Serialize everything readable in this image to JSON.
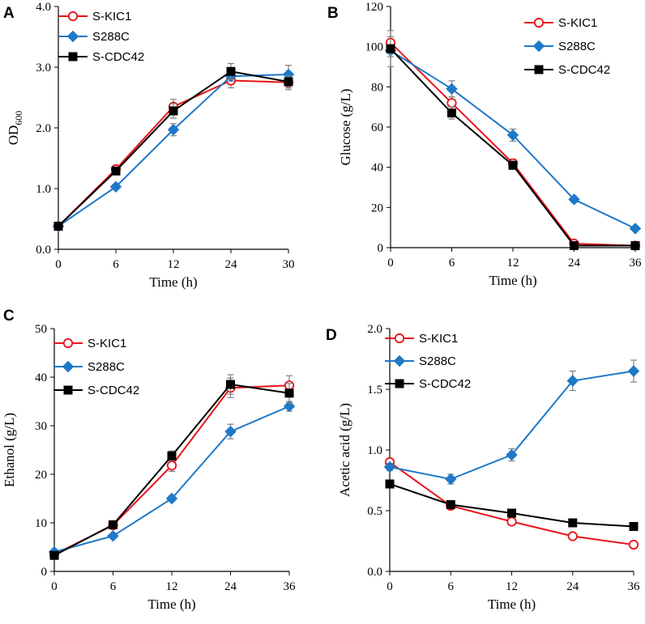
{
  "colors": {
    "S-KIC1": "#e8141b",
    "S288C": "#1f78c8",
    "S-CDC42": "#000000",
    "errorbar": "#808080"
  },
  "chart_data": [
    {
      "panel": "A",
      "type": "line",
      "xlabel": "Time (h)",
      "ylabel": "OD",
      "ylabel_sub": "600",
      "x": [
        0,
        6,
        12,
        24,
        30
      ],
      "xticks": [
        "0",
        "6",
        "12",
        "24",
        "30"
      ],
      "ylim": [
        0,
        4
      ],
      "yticks": [
        0,
        1,
        2,
        3,
        4
      ],
      "ytick_labels": [
        "0.0",
        "1.0",
        "2.0",
        "3.0",
        "4.0"
      ],
      "legend": "top-left",
      "series": [
        {
          "name": "S-KIC1",
          "marker": "circle",
          "values": [
            0.38,
            1.32,
            2.35,
            2.78,
            2.75
          ],
          "errors": [
            0.02,
            0.05,
            0.12,
            0.12,
            0.12
          ]
        },
        {
          "name": "S288C",
          "marker": "diamond",
          "values": [
            0.38,
            1.03,
            1.97,
            2.85,
            2.88
          ],
          "errors": [
            0.02,
            0.04,
            0.1,
            0.08,
            0.15
          ]
        },
        {
          "name": "S-CDC42",
          "marker": "square",
          "values": [
            0.38,
            1.29,
            2.28,
            2.93,
            2.76
          ],
          "errors": [
            0.02,
            0.06,
            0.12,
            0.13,
            0.1
          ]
        }
      ]
    },
    {
      "panel": "B",
      "type": "line",
      "xlabel": "Time (h)",
      "ylabel": "Glucose (g/L)",
      "x": [
        0,
        6,
        12,
        24,
        36
      ],
      "xticks": [
        "0",
        "6",
        "12",
        "24",
        "36"
      ],
      "ylim": [
        0,
        120
      ],
      "yticks": [
        0,
        20,
        40,
        60,
        80,
        100,
        120
      ],
      "ytick_labels": [
        "0",
        "20",
        "40",
        "60",
        "80",
        "100",
        "120"
      ],
      "legend": "top-right",
      "series": [
        {
          "name": "S-KIC1",
          "marker": "circle",
          "values": [
            102,
            72,
            42,
            2,
            1
          ],
          "errors": [
            3,
            3,
            2,
            1,
            0.5
          ]
        },
        {
          "name": "S288C",
          "marker": "diamond",
          "values": [
            98,
            79,
            56,
            24,
            9.5
          ],
          "errors": [
            3,
            4,
            3,
            1.5,
            1
          ]
        },
        {
          "name": "S-CDC42",
          "marker": "square",
          "values": [
            99,
            67,
            41,
            1,
            1
          ],
          "errors": [
            9,
            3,
            2,
            0.5,
            0.5
          ]
        }
      ]
    },
    {
      "panel": "C",
      "type": "line",
      "xlabel": "Time (h)",
      "ylabel": "Ethanol (g/L)",
      "x": [
        0,
        6,
        12,
        24,
        36
      ],
      "xticks": [
        "0",
        "6",
        "12",
        "24",
        "36"
      ],
      "ylim": [
        0,
        50
      ],
      "yticks": [
        0,
        10,
        20,
        30,
        40,
        50
      ],
      "ytick_labels": [
        "0",
        "10",
        "20",
        "30",
        "40",
        "50"
      ],
      "legend": "top-left",
      "series": [
        {
          "name": "S-KIC1",
          "marker": "circle",
          "values": [
            3.5,
            9.5,
            21.8,
            37.8,
            38.3
          ],
          "errors": [
            0.3,
            0.4,
            1.2,
            2.0,
            2.0
          ]
        },
        {
          "name": "S288C",
          "marker": "diamond",
          "values": [
            4.0,
            7.3,
            15.0,
            28.8,
            34.0
          ],
          "errors": [
            0.3,
            0.4,
            0.6,
            1.5,
            1.0
          ]
        },
        {
          "name": "S-CDC42",
          "marker": "square",
          "values": [
            3.3,
            9.6,
            23.8,
            38.5,
            36.7
          ],
          "errors": [
            0.3,
            0.4,
            1.0,
            2.0,
            2.0
          ]
        }
      ]
    },
    {
      "panel": "D",
      "type": "line",
      "xlabel": "Time (h)",
      "ylabel": "Acetic acid (g/L)",
      "x": [
        0,
        6,
        12,
        24,
        36
      ],
      "xticks": [
        "0",
        "6",
        "12",
        "24",
        "36"
      ],
      "ylim": [
        0,
        2
      ],
      "yticks": [
        0,
        0.5,
        1.0,
        1.5,
        2.0
      ],
      "ytick_labels": [
        "0.0",
        "0.5",
        "1.0",
        "1.5",
        "2.0"
      ],
      "legend": "top-left",
      "series": [
        {
          "name": "S-KIC1",
          "marker": "circle",
          "values": [
            0.9,
            0.54,
            0.41,
            0.29,
            0.22
          ],
          "errors": [
            0.02,
            0.02,
            0.02,
            0.02,
            0.02
          ]
        },
        {
          "name": "S288C",
          "marker": "diamond",
          "values": [
            0.86,
            0.76,
            0.96,
            1.57,
            1.65
          ],
          "errors": [
            0.03,
            0.04,
            0.05,
            0.08,
            0.09
          ]
        },
        {
          "name": "S-CDC42",
          "marker": "square",
          "values": [
            0.72,
            0.55,
            0.48,
            0.4,
            0.37
          ],
          "errors": [
            0.03,
            0.02,
            0.02,
            0.02,
            0.02
          ]
        }
      ]
    }
  ]
}
